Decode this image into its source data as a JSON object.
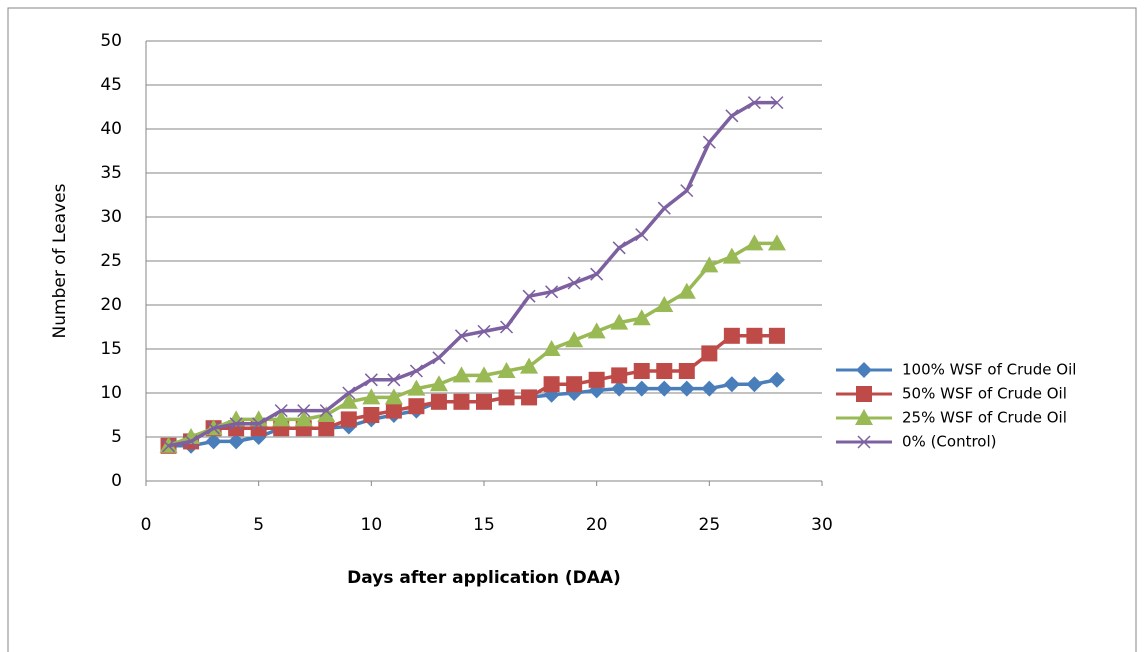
{
  "chart_data": {
    "type": "line",
    "x_label": "Days after application (DAA)",
    "y_label": "Number of Leaves",
    "x": [
      1,
      2,
      3,
      4,
      5,
      6,
      7,
      8,
      9,
      10,
      11,
      12,
      13,
      14,
      15,
      16,
      17,
      18,
      19,
      20,
      21,
      22,
      23,
      24,
      25,
      26,
      27,
      28
    ],
    "series": [
      {
        "name": "100% WSF of Crude Oil",
        "color": "#4a7ebb",
        "marker": "diamond",
        "values": [
          4,
          4,
          4.5,
          4.5,
          5,
          6,
          6,
          6,
          6.2,
          7,
          7.5,
          8,
          9,
          9,
          9,
          9.5,
          9.5,
          9.8,
          10,
          10.3,
          10.5,
          10.5,
          10.5,
          10.5,
          10.5,
          11,
          11,
          11.5
        ]
      },
      {
        "name": "50% WSF of Crude Oil",
        "color": "#be4b48",
        "marker": "square",
        "values": [
          4,
          4.5,
          6,
          6,
          6,
          6,
          6,
          6,
          7,
          7.5,
          8,
          8.5,
          9,
          9,
          9,
          9.5,
          9.5,
          11,
          11,
          11.5,
          12,
          12.5,
          12.5,
          12.5,
          14.5,
          16.5,
          16.5,
          16.5
        ]
      },
      {
        "name": "25% WSF of Crude Oil",
        "color": "#98b954",
        "marker": "triangle",
        "values": [
          4,
          5,
          6,
          7,
          7,
          7,
          7,
          7.5,
          9,
          9.5,
          9.5,
          10.5,
          11,
          12,
          12,
          12.5,
          13,
          15,
          16,
          17,
          18,
          18.5,
          20,
          21.5,
          24.5,
          25.5,
          27,
          27
        ]
      },
      {
        "name": "0% (Control)",
        "color": "#7d60a0",
        "marker": "x",
        "values": [
          4,
          4.5,
          6,
          6.5,
          6.5,
          8,
          8,
          8,
          10,
          11.5,
          11.5,
          12.5,
          14,
          16.5,
          17,
          17.5,
          21,
          21.5,
          22.5,
          23.5,
          26.5,
          28,
          31,
          33,
          38.5,
          41.5,
          43,
          43
        ]
      }
    ],
    "xlim": [
      0,
      30
    ],
    "xticks": [
      0,
      5,
      10,
      15,
      20,
      25,
      30
    ],
    "ylim": [
      0,
      50
    ],
    "yticks": [
      0,
      5,
      10,
      15,
      20,
      25,
      30,
      35,
      40,
      45,
      50
    ],
    "grid": true,
    "legend": "right"
  }
}
